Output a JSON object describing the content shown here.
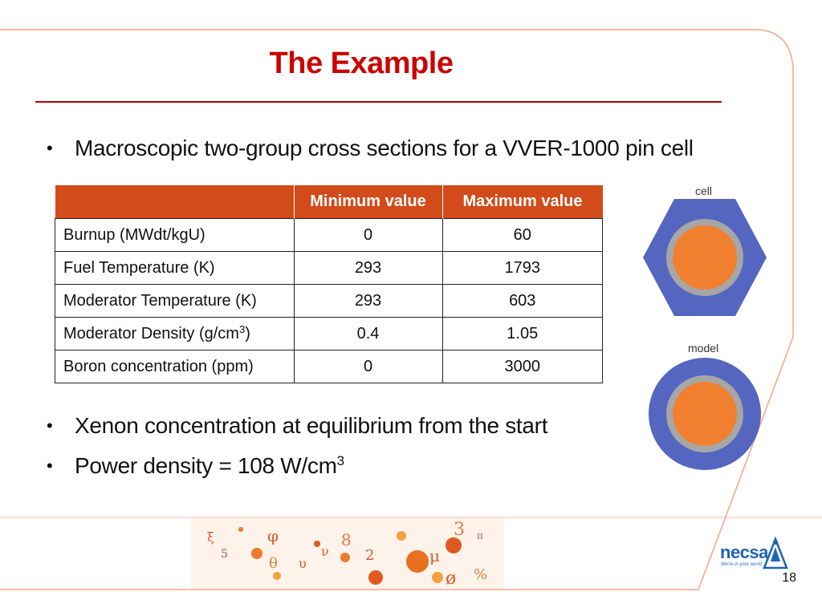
{
  "slide": {
    "title": "The Example",
    "page_number": "18"
  },
  "bullets": {
    "b1": "Macroscopic two-group cross sections for a VVER-1000 pin cell",
    "b2": "Xenon concentration at equilibrium from the start",
    "b3_text": "Power density = 108 W/cm",
    "b3_sup": "3"
  },
  "table": {
    "headers": [
      "",
      "Minimum value",
      "Maximum value"
    ],
    "rows": [
      {
        "label": "Burnup (MWdt/kgU)",
        "label_sup": "",
        "label_tail": "",
        "min": "0",
        "max": "60"
      },
      {
        "label": "Fuel Temperature (K)",
        "label_sup": "",
        "label_tail": "",
        "min": "293",
        "max": "1793"
      },
      {
        "label": "Moderator Temperature (K)",
        "label_sup": "",
        "label_tail": "",
        "min": "293",
        "max": "603"
      },
      {
        "label": "Moderator Density (g/cm",
        "label_sup": "3",
        "label_tail": ")",
        "min": "0.4",
        "max": "1.05"
      },
      {
        "label": "Boron concentration (ppm)",
        "label_sup": "",
        "label_tail": "",
        "min": "0",
        "max": "3000"
      }
    ]
  },
  "figures": {
    "cell_label": "cell",
    "model_label": "model"
  },
  "logo": {
    "name": "necsa",
    "tagline": "We're in your world"
  },
  "colors": {
    "title_red": "#cc0000",
    "header_orange": "#d24b1a",
    "pin_blue": "#5566c0",
    "cladding_gray": "#a6a6a6",
    "fuel_orange": "#f08030",
    "frame_salmon": "#f2a48a"
  },
  "decoration_glyphs": [
    "φ",
    "θ",
    "υ",
    "ν",
    "μ",
    "ø",
    "%",
    "π",
    "ξ",
    "2",
    "3",
    "8",
    "5"
  ]
}
